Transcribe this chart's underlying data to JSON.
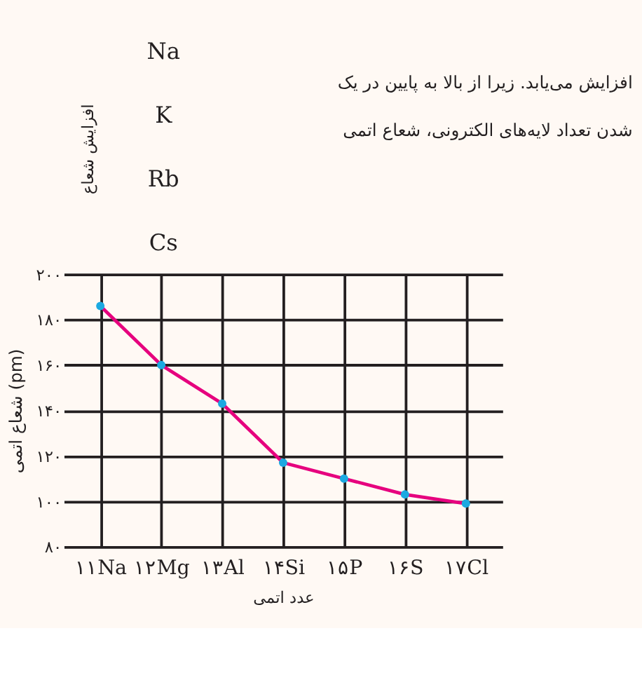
{
  "chart_data": {
    "type": "line",
    "categories": [
      "۱۱Na",
      "۱۲Mg",
      "۱۳Al",
      "۱۴Si",
      "۱۵P",
      "۱۶S",
      "۱۷Cl"
    ],
    "series": [
      {
        "color": "#e6007e",
        "marker": "none",
        "values": [
          186,
          160,
          143,
          117,
          110,
          103,
          99
        ]
      },
      {
        "type": "scatter",
        "marker": "circle",
        "color": "#1ba9e1",
        "values": [
          186,
          160,
          143,
          117,
          110,
          103,
          99
        ]
      }
    ],
    "line_style": "solid",
    "legend": false,
    "xlabel": "عدد اتمی",
    "ylabel": "شعاع اتمی (pm)",
    "ylim": [
      80,
      200
    ],
    "yticks": [
      {
        "value": 80,
        "label": "۸۰"
      },
      {
        "value": 100,
        "label": "۱۰۰"
      },
      {
        "value": 120,
        "label": "۱۲۰"
      },
      {
        "value": 140,
        "label": "۱۴۰"
      },
      {
        "value": 160,
        "label": "۱۶۰"
      },
      {
        "value": 180,
        "label": "۱۸۰"
      },
      {
        "value": 200,
        "label": "۲۰۰"
      }
    ],
    "grid": true,
    "annotations": [
      "Na",
      "K",
      "Rb",
      "Cs",
      "افزایش شعاع",
      "افزایش می‌یابد. زیرا از بالا به پایین در یک",
      "شدن تعداد لایه‌های الکترونی، شعاع اتمی"
    ]
  }
}
